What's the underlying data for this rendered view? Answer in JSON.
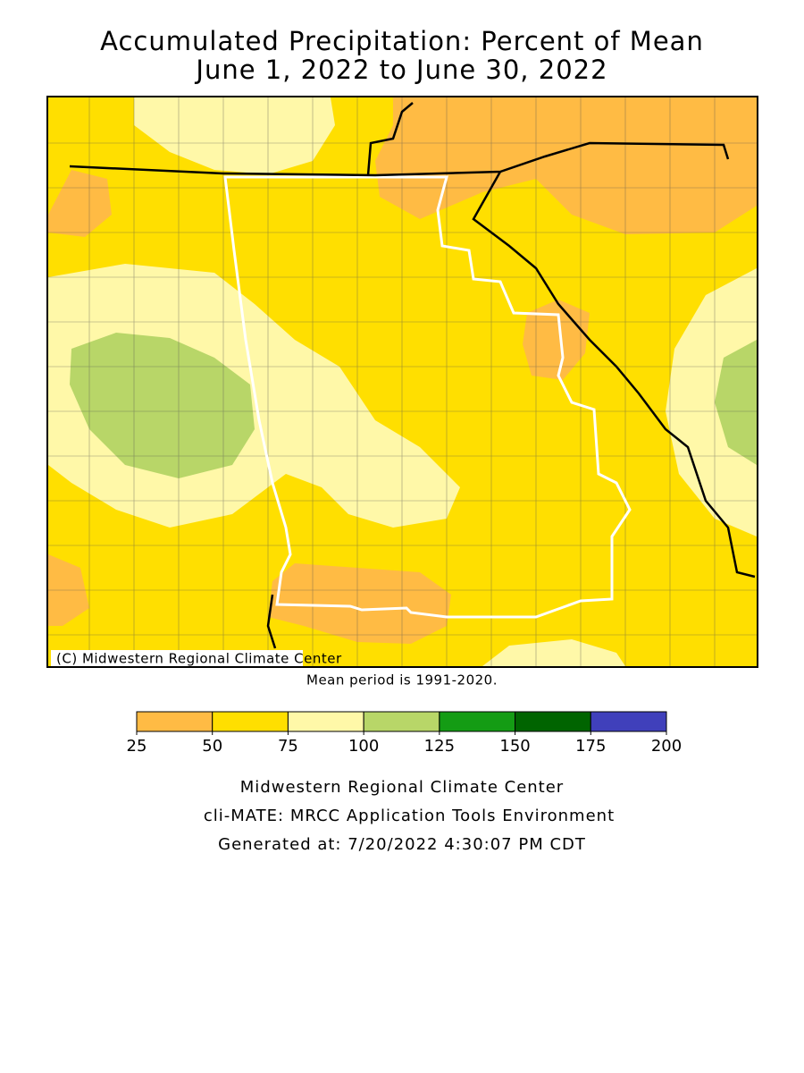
{
  "title": [
    "Accumulated Precipitation: Percent of Mean",
    "June 1, 2022 to June 30, 2022"
  ],
  "map": {
    "copyright": "(C) Midwestern Regional Climate Center",
    "note": "Mean period is 1991-2020."
  },
  "legend": {
    "ticks": [
      25,
      50,
      75,
      100,
      125,
      150,
      175,
      200
    ],
    "colors": [
      "#ffbb44",
      "#ffdf00",
      "#fff8a8",
      "#b8d668",
      "#149c14",
      "#006400",
      "#4040bb"
    ]
  },
  "footer": [
    "Midwestern Regional Climate Center",
    "cli-MATE: MRCC Application Tools Environment",
    "Generated at: 7/20/2022 4:30:07 PM CDT"
  ]
}
